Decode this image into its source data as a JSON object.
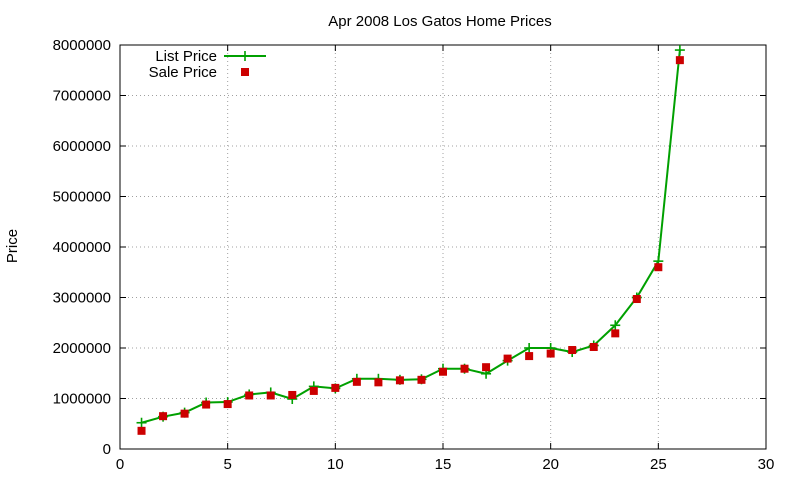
{
  "chart_data": {
    "type": "line",
    "title": "Apr 2008 Los Gatos Home Prices",
    "xlabel": "",
    "ylabel": "Price",
    "xlim": [
      0,
      30
    ],
    "ylim": [
      0,
      8000000
    ],
    "x_ticks": [
      0,
      5,
      10,
      15,
      20,
      25,
      30
    ],
    "y_ticks": [
      0,
      1000000,
      2000000,
      3000000,
      4000000,
      5000000,
      6000000,
      7000000,
      8000000
    ],
    "grid": true,
    "legend_position": "top-left",
    "series": [
      {
        "name": "List Price",
        "style": "line-with-plus-markers",
        "color": "#00a000",
        "x": [
          1,
          2,
          3,
          4,
          5,
          6,
          7,
          8,
          9,
          10,
          11,
          12,
          13,
          14,
          15,
          16,
          17,
          18,
          19,
          20,
          21,
          22,
          23,
          24,
          25,
          26
        ],
        "values": [
          520000,
          640000,
          720000,
          920000,
          930000,
          1080000,
          1120000,
          990000,
          1240000,
          1200000,
          1390000,
          1390000,
          1370000,
          1380000,
          1590000,
          1590000,
          1490000,
          1750000,
          2000000,
          2000000,
          1920000,
          2050000,
          2450000,
          3000000,
          3720000,
          7900000
        ]
      },
      {
        "name": "Sale Price",
        "style": "square-markers",
        "color": "#cc0000",
        "x": [
          1,
          2,
          3,
          4,
          5,
          6,
          7,
          8,
          9,
          10,
          11,
          12,
          13,
          14,
          15,
          16,
          17,
          18,
          19,
          20,
          21,
          22,
          23,
          24,
          25,
          26
        ],
        "values": [
          360000,
          650000,
          700000,
          880000,
          890000,
          1060000,
          1060000,
          1070000,
          1150000,
          1210000,
          1330000,
          1320000,
          1360000,
          1370000,
          1530000,
          1590000,
          1620000,
          1790000,
          1840000,
          1890000,
          1960000,
          2020000,
          2290000,
          2970000,
          3600000,
          7700000
        ]
      }
    ]
  }
}
